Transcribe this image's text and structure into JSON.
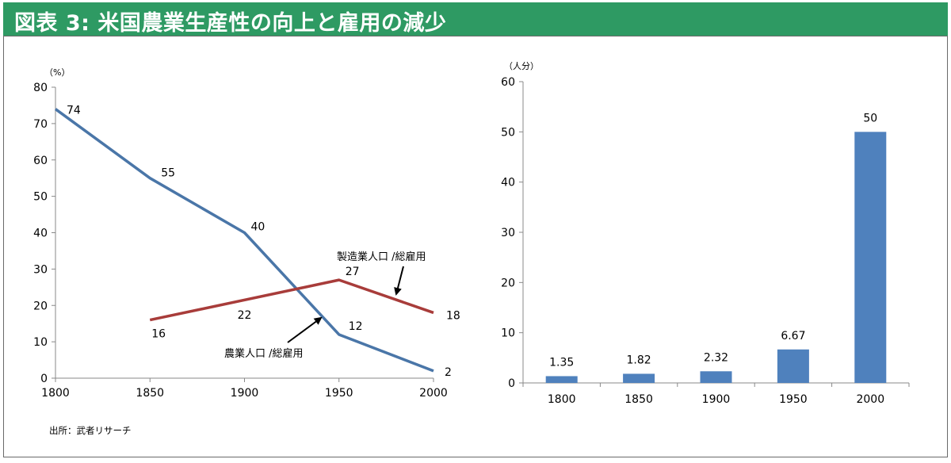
{
  "header": {
    "title": "図表 3: 米国農業生産性の向上と雇用の減少"
  },
  "source": "出所：武者リサーチ",
  "colors": {
    "title_bg": "#2e9a63",
    "line_agriculture": "#4a76a8",
    "line_manufacturing": "#a83c3a",
    "bar": "#4f81bd"
  },
  "chart_data": [
    {
      "type": "line",
      "unit_label": "（%）",
      "x": [
        1800,
        1850,
        1900,
        1950,
        2000
      ],
      "xlim": [
        1800,
        2000
      ],
      "ylim": [
        0,
        80
      ],
      "x_ticks": [
        "1800",
        "1850",
        "1900",
        "1950",
        "2000"
      ],
      "y_ticks": [
        "0",
        "10",
        "20",
        "30",
        "40",
        "50",
        "60",
        "70",
        "80"
      ],
      "series": [
        {
          "name": "農業人口／総雇用",
          "label": "農業人口 /総雇用",
          "x": [
            1800,
            1850,
            1900,
            1950,
            2000
          ],
          "values": [
            74,
            55,
            40,
            12,
            2
          ],
          "labels": [
            "74",
            "55",
            "40",
            "12",
            "2"
          ],
          "color": "#4a76a8"
        },
        {
          "name": "製造業人口／総雇用",
          "label": "製造業人口 /総雇用",
          "x": [
            1850,
            1950,
            2000
          ],
          "values": [
            16,
            27,
            18
          ],
          "labels": [
            "16",
            "27",
            "18"
          ],
          "x_mid": 1900,
          "value_mid": 22,
          "label_mid": "22",
          "color": "#a83c3a"
        }
      ],
      "grid": false
    },
    {
      "type": "bar",
      "unit_label": "（人分）",
      "categories": [
        "1800",
        "1850",
        "1900",
        "1950",
        "2000"
      ],
      "values": [
        1.35,
        1.82,
        2.32,
        6.67,
        50
      ],
      "labels": [
        "1.35",
        "1.82",
        "2.32",
        "6.67",
        "50"
      ],
      "ylim": [
        0,
        60
      ],
      "y_ticks": [
        "0",
        "10",
        "20",
        "30",
        "40",
        "50",
        "60"
      ],
      "grid": false
    }
  ]
}
